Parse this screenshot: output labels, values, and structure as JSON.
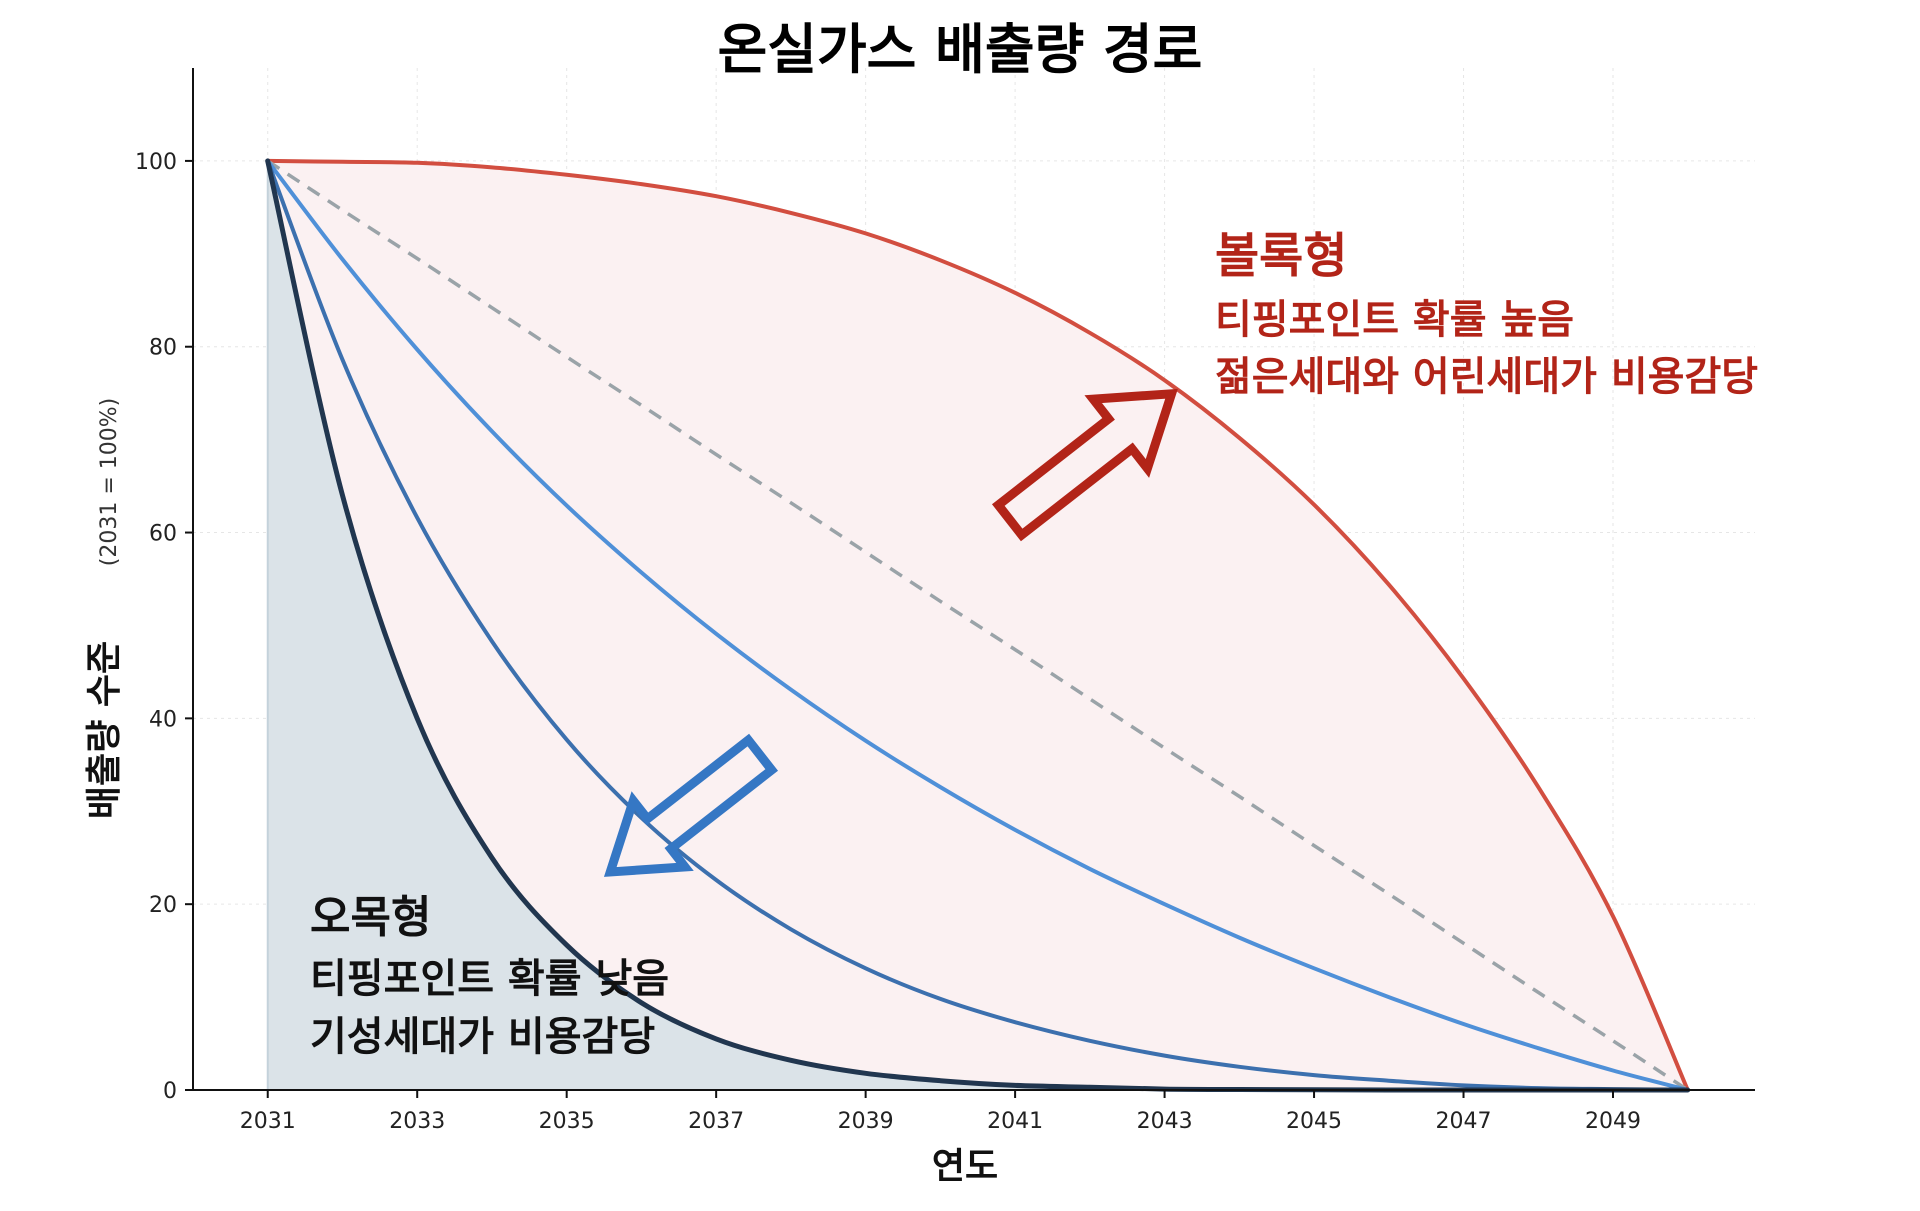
{
  "chart_data": {
    "type": "line",
    "title": "온실가스 배출량 경로",
    "xlabel": "연도",
    "ylabel": "배출량 수준",
    "ylabel_sub": "(2031 = 100%)",
    "xlim": [
      2030,
      2050.9
    ],
    "ylim": [
      0,
      110
    ],
    "x_ticks": [
      2031,
      2033,
      2035,
      2037,
      2039,
      2041,
      2043,
      2045,
      2047,
      2049
    ],
    "y_ticks": [
      0,
      20,
      40,
      60,
      80,
      100
    ],
    "grid": true,
    "x": [
      2031,
      2032,
      2033,
      2034,
      2035,
      2036,
      2037,
      2038,
      2039,
      2040,
      2041,
      2042,
      2043,
      2044,
      2045,
      2046,
      2047,
      2048,
      2049,
      2050
    ],
    "series": [
      {
        "color": "#d24e40",
        "style": "solid",
        "fill": "#fbf1f2",
        "values": [
          100,
          99.9,
          99.8,
          99.3,
          98.5,
          97.5,
          96.2,
          94.4,
          92.2,
          89.3,
          85.8,
          81.5,
          76.4,
          70.2,
          63.0,
          54.4,
          44.3,
          32.6,
          18.7,
          0
        ]
      },
      {
        "color": "#9aa3a8",
        "style": "dashed",
        "values": [
          100,
          94.7,
          89.5,
          84.2,
          78.9,
          73.7,
          68.4,
          63.2,
          57.9,
          52.6,
          47.4,
          42.1,
          36.8,
          31.6,
          26.3,
          21.1,
          15.8,
          10.5,
          5.3,
          0
        ]
      },
      {
        "color": "#4f90d8",
        "style": "solid",
        "values": [
          100,
          89.4,
          79.7,
          70.9,
          62.9,
          55.7,
          49.1,
          43.1,
          37.6,
          32.6,
          28.0,
          23.8,
          20.0,
          16.4,
          13.1,
          10.0,
          7.1,
          4.5,
          2.1,
          0
        ]
      },
      {
        "color": "#3c70ae",
        "style": "solid",
        "values": [
          100,
          78.6,
          61.6,
          48.3,
          37.7,
          29.3,
          22.6,
          17.3,
          13.1,
          9.8,
          7.3,
          5.3,
          3.7,
          2.5,
          1.6,
          1.0,
          0.5,
          0.2,
          0.1,
          0
        ]
      },
      {
        "color": "#21364f",
        "style": "solid",
        "fill": "#dbe3e8",
        "values": [
          100,
          64.0,
          40.0,
          25.0,
          15.6,
          9.4,
          5.5,
          3.2,
          1.8,
          1.0,
          0.5,
          0.3,
          0.1,
          0.05,
          0.02,
          0,
          0,
          0,
          0,
          0
        ]
      }
    ],
    "annotations": [
      {
        "title": "볼록형",
        "lines": [
          "티핑포인트 확률 높음",
          "젊은세대와 어린세대가 비용감당"
        ],
        "color": "#b22418"
      },
      {
        "title": "오목형",
        "lines": [
          "티핑포인트 확률 낮음",
          "기성세대가 비용감당"
        ],
        "color": "#111111"
      }
    ],
    "arrows": [
      {
        "direction": "up-right",
        "color": "#b22418"
      },
      {
        "direction": "down-left",
        "color": "#3577c4"
      }
    ]
  }
}
